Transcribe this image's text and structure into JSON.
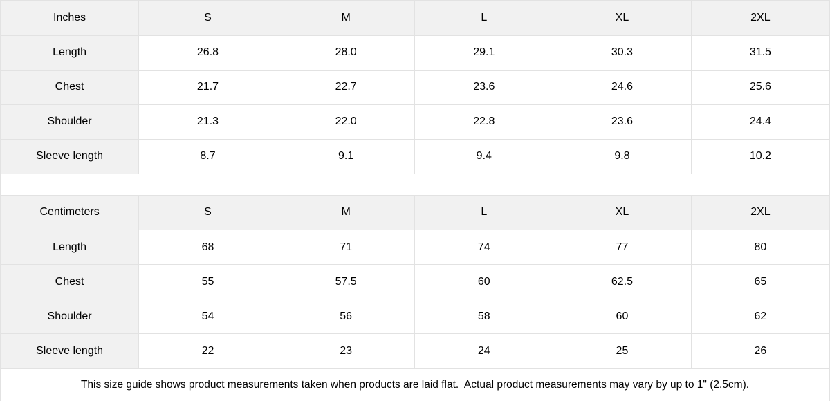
{
  "chart_data": [
    {
      "type": "table",
      "unit_header": "Inches",
      "size_headers": [
        "S",
        "M",
        "L",
        "XL",
        "2XL"
      ],
      "rows": [
        {
          "label": "Length",
          "values": [
            "26.8",
            "28.0",
            "29.1",
            "30.3",
            "31.5"
          ]
        },
        {
          "label": "Chest",
          "values": [
            "21.7",
            "22.7",
            "23.6",
            "24.6",
            "25.6"
          ]
        },
        {
          "label": "Shoulder",
          "values": [
            "21.3",
            "22.0",
            "22.8",
            "23.6",
            "24.4"
          ]
        },
        {
          "label": "Sleeve length",
          "values": [
            "8.7",
            "9.1",
            "9.4",
            "9.8",
            "10.2"
          ]
        }
      ]
    },
    {
      "type": "table",
      "unit_header": "Centimeters",
      "size_headers": [
        "S",
        "M",
        "L",
        "XL",
        "2XL"
      ],
      "rows": [
        {
          "label": "Length",
          "values": [
            "68",
            "71",
            "74",
            "77",
            "80"
          ]
        },
        {
          "label": "Chest",
          "values": [
            "55",
            "57.5",
            "60",
            "62.5",
            "65"
          ]
        },
        {
          "label": "Shoulder",
          "values": [
            "54",
            "56",
            "58",
            "60",
            "62"
          ]
        },
        {
          "label": "Sleeve length",
          "values": [
            "22",
            "23",
            "24",
            "25",
            "26"
          ]
        }
      ]
    }
  ],
  "footer": {
    "note": "This size guide shows product measurements taken when products are laid flat.  Actual product measurements may vary by up to 1\" (2.5cm)."
  },
  "colors": {
    "header_bg": "#f1f1f1",
    "border": "#e2e2e2",
    "text": "#000000",
    "background": "#ffffff"
  }
}
